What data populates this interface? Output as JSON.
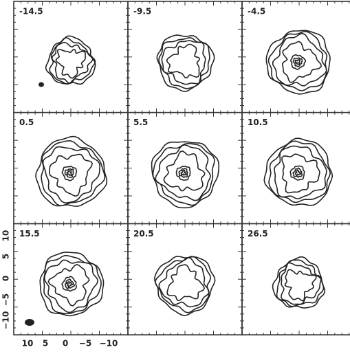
{
  "figure": {
    "panels": [
      {
        "label": "-14.5"
      },
      {
        "label": "-9.5"
      },
      {
        "label": "-4.5"
      },
      {
        "label": "0.5"
      },
      {
        "label": "5.5"
      },
      {
        "label": "10.5"
      },
      {
        "label": "15.5"
      },
      {
        "label": "20.5"
      },
      {
        "label": "26.5"
      }
    ],
    "y_axis_ticks": [
      "10",
      "5",
      "0",
      "−5",
      "−10"
    ],
    "x_axis_ticks": [
      "10",
      "5",
      "0",
      "−5",
      "−10"
    ]
  }
}
